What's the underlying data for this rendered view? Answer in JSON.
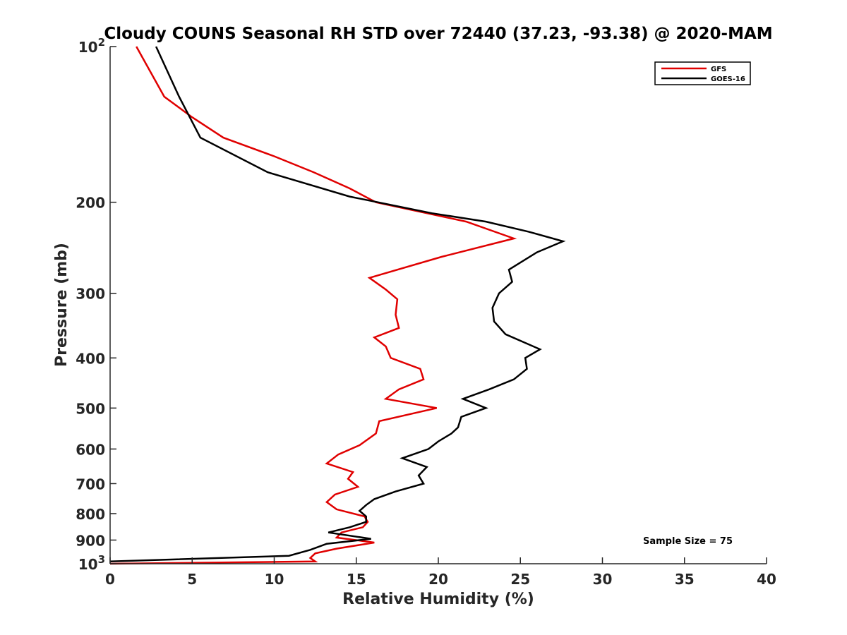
{
  "chart_data": {
    "type": "line",
    "title": "Cloudy COUNS Seasonal RH STD over 72440 (37.23, -93.38) @ 2020-MAM",
    "xlabel": "Relative Humidity (%)",
    "ylabel": "Pressure (mb)",
    "xlim": [
      0,
      40
    ],
    "ylim": [
      100,
      1000
    ],
    "yscale": "log",
    "y_reversed": true,
    "xticks": [
      0,
      5,
      10,
      15,
      20,
      25,
      30,
      35,
      40
    ],
    "xtick_labels": [
      "0",
      "5",
      "10",
      "15",
      "20",
      "25",
      "30",
      "35",
      "40"
    ],
    "yticks": [
      100,
      200,
      300,
      400,
      500,
      600,
      700,
      800,
      900,
      1000
    ],
    "ytick_labels": [
      {
        "base": "10",
        "exp": "2"
      },
      {
        "base": "200",
        "exp": ""
      },
      {
        "base": "300",
        "exp": ""
      },
      {
        "base": "400",
        "exp": ""
      },
      {
        "base": "500",
        "exp": ""
      },
      {
        "base": "600",
        "exp": ""
      },
      {
        "base": "700",
        "exp": ""
      },
      {
        "base": "800",
        "exp": ""
      },
      {
        "base": "900",
        "exp": ""
      },
      {
        "base": "10",
        "exp": "3"
      }
    ],
    "legend_position": "top-right",
    "series": [
      {
        "name": "GFS",
        "color": "#e00000",
        "points": [
          [
            1.6,
            100
          ],
          [
            3.3,
            125
          ],
          [
            5.0,
            137
          ],
          [
            6.9,
            150
          ],
          [
            10.0,
            163
          ],
          [
            12.4,
            175
          ],
          [
            14.6,
            188
          ],
          [
            16.2,
            200
          ],
          [
            21.7,
            218
          ],
          [
            24.6,
            235
          ],
          [
            20.2,
            255
          ],
          [
            15.8,
            280
          ],
          [
            16.8,
            295
          ],
          [
            17.5,
            308
          ],
          [
            17.4,
            330
          ],
          [
            17.6,
            350
          ],
          [
            16.1,
            365
          ],
          [
            16.8,
            380
          ],
          [
            17.1,
            400
          ],
          [
            18.9,
            420
          ],
          [
            19.1,
            440
          ],
          [
            17.6,
            460
          ],
          [
            16.8,
            480
          ],
          [
            19.9,
            500
          ],
          [
            16.4,
            530
          ],
          [
            16.2,
            560
          ],
          [
            15.2,
            590
          ],
          [
            13.9,
            615
          ],
          [
            13.2,
            640
          ],
          [
            14.8,
            665
          ],
          [
            14.5,
            685
          ],
          [
            15.1,
            710
          ],
          [
            13.7,
            735
          ],
          [
            13.2,
            760
          ],
          [
            13.8,
            785
          ],
          [
            15.5,
            810
          ],
          [
            15.7,
            830
          ],
          [
            15.4,
            850
          ],
          [
            14.1,
            870
          ],
          [
            13.8,
            890
          ],
          [
            16.1,
            910
          ],
          [
            13.8,
            935
          ],
          [
            12.5,
            955
          ],
          [
            12.2,
            975
          ],
          [
            12.5,
            990
          ],
          [
            0,
            1000
          ]
        ]
      },
      {
        "name": "GOES-16",
        "color": "#000000",
        "points": [
          [
            2.8,
            100
          ],
          [
            4.2,
            125
          ],
          [
            5.5,
            150
          ],
          [
            9.6,
            175
          ],
          [
            14.6,
            195
          ],
          [
            19.6,
            210
          ],
          [
            22.9,
            218
          ],
          [
            25.5,
            228
          ],
          [
            27.6,
            238
          ],
          [
            26.0,
            250
          ],
          [
            24.3,
            270
          ],
          [
            24.5,
            285
          ],
          [
            23.7,
            300
          ],
          [
            23.3,
            320
          ],
          [
            23.4,
            340
          ],
          [
            24.1,
            360
          ],
          [
            26.2,
            385
          ],
          [
            25.3,
            400
          ],
          [
            25.4,
            420
          ],
          [
            24.6,
            440
          ],
          [
            23.1,
            460
          ],
          [
            21.5,
            480
          ],
          [
            22.9,
            500
          ],
          [
            21.4,
            520
          ],
          [
            21.2,
            545
          ],
          [
            20.8,
            560
          ],
          [
            20.0,
            580
          ],
          [
            19.4,
            600
          ],
          [
            17.8,
            625
          ],
          [
            19.3,
            650
          ],
          [
            18.8,
            675
          ],
          [
            19.1,
            700
          ],
          [
            17.4,
            725
          ],
          [
            16.1,
            750
          ],
          [
            15.6,
            770
          ],
          [
            15.2,
            790
          ],
          [
            15.6,
            810
          ],
          [
            15.6,
            830
          ],
          [
            14.6,
            850
          ],
          [
            13.3,
            870
          ],
          [
            15.9,
            895
          ],
          [
            13.2,
            915
          ],
          [
            12.2,
            940
          ],
          [
            10.9,
            965
          ],
          [
            0,
            990
          ]
        ]
      }
    ],
    "annotation": "Sample Size = 75"
  }
}
